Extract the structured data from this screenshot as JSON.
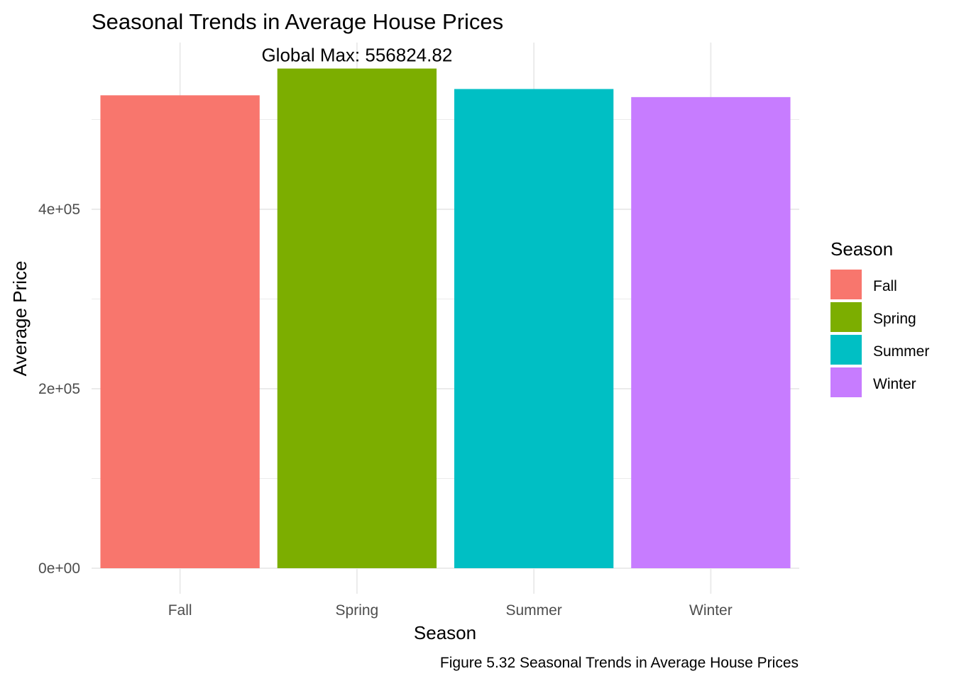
{
  "chart_data": {
    "type": "bar",
    "title": "Seasonal Trends in Average House Prices",
    "xlabel": "Season",
    "ylabel": "Average Price",
    "categories": [
      "Fall",
      "Spring",
      "Summer",
      "Winter"
    ],
    "values": [
      527000,
      556824.82,
      534000,
      525000
    ],
    "colors": [
      "#F8766D",
      "#7CAE00",
      "#00BFC4",
      "#C77CFF"
    ],
    "ylim": [
      0,
      575000
    ],
    "yticks": [
      {
        "value": 0,
        "label": "0e+00"
      },
      {
        "value": 200000,
        "label": "2e+05"
      },
      {
        "value": 400000,
        "label": "4e+05"
      }
    ],
    "y_minor_gridlines": [
      100000,
      300000,
      500000
    ],
    "grid": true,
    "annotation": {
      "text": "Global Max: 556824.82",
      "category": "Spring",
      "value": 556824.82
    },
    "legend": {
      "title": "Season",
      "placement": "right",
      "entries": [
        "Fall",
        "Spring",
        "Summer",
        "Winter"
      ]
    },
    "caption": "Figure 5.32 Seasonal Trends in Average House Prices"
  }
}
